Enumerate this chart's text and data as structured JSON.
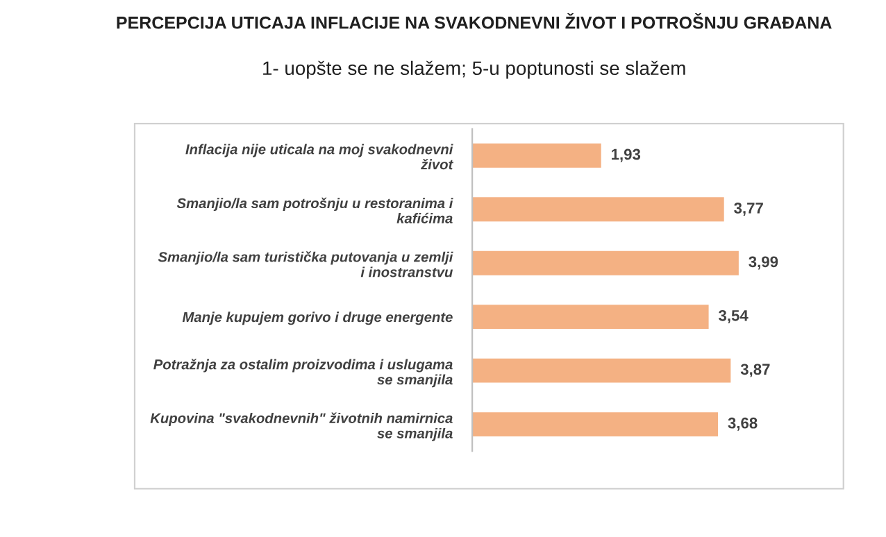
{
  "chart_data": {
    "type": "bar",
    "orientation": "horizontal",
    "title": "PERCEPCIJA UTICAJA INFLACIJE NA SVAKODNEVNI ŽIVOT I POTROŠNJU GRAĐANA",
    "subtitle": "1- uopšte se ne slažem; 5-u poptunosti se slažem",
    "categories": [
      "Inflacija nije uticala na moj svakodnevni\nživot",
      "Smanjio/la sam potrošnju u restoranima i\nkafićima",
      "Smanjio/la sam turistička putovanja u zemlji\ni inostranstvu",
      "Manje kupujem gorivo i druge energente",
      "Potražnja za ostalim proizvodima i uslugama\nse smanjila",
      "Kupovina \"svakodnevnih\" životnih namirnica\nse smanjila"
    ],
    "values": [
      1.93,
      3.77,
      3.99,
      3.54,
      3.87,
      3.68
    ],
    "value_labels": [
      "1,93",
      "3,77",
      "3,99",
      "3,54",
      "3,87",
      "3,68"
    ],
    "color": "#f4b183",
    "grid": false,
    "legend": false
  }
}
